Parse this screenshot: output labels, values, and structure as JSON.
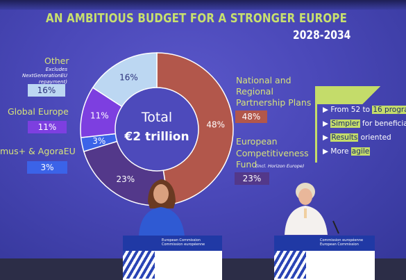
{
  "slide": {
    "title": "AN AMBITIOUS BUDGET FOR A STRONGER EUROPE",
    "years": "2028-2034",
    "total_label": "Total",
    "total_value": "€2 trillion"
  },
  "left_labels": [
    {
      "label": "Other",
      "note": "Excludes NextGenerationEU repayment)",
      "value": "16%",
      "color": "#bcd7f2"
    },
    {
      "label": "Global Europe",
      "value": "11%",
      "color": "#7d3fe0"
    },
    {
      "label": "mus+ & AgoraEU",
      "value": "3%",
      "color": "#3b63e8"
    }
  ],
  "right_labels": [
    {
      "label_lines": [
        "National and",
        "Regional",
        "Partnership Plans"
      ],
      "value": "48%",
      "color": "#b2574b"
    },
    {
      "label_lines": [
        "European",
        "Competitiveness",
        "Fund"
      ],
      "note": "(incl. Horizon Europe)",
      "value": "23%",
      "color": "#53388a"
    }
  ],
  "donut": {
    "segments": [
      {
        "name": "National and Regional Partnership Plans",
        "value": 48,
        "label": "48%",
        "color": "#b2574b"
      },
      {
        "name": "European Competitiveness Fund",
        "value": 23,
        "label": "23%",
        "color": "#53388a"
      },
      {
        "name": "mus+ & AgoraEU",
        "value": 3,
        "label": "3%",
        "color": "#3b63e8"
      },
      {
        "name": "Global Europe",
        "value": 11,
        "label": "11%",
        "color": "#7d3fe0"
      },
      {
        "name": "Other",
        "value": 16,
        "label": "16%",
        "color": "#bcd7f2"
      }
    ]
  },
  "bullets": [
    {
      "prefix": "From 52 to ",
      "highlight": "16 progra",
      "suffix": ""
    },
    {
      "prefix": "",
      "highlight": "Simpler",
      "suffix": " for beneficiari"
    },
    {
      "prefix": "",
      "highlight": "Results",
      "suffix": " oriented"
    },
    {
      "prefix": "More ",
      "highlight": "agile",
      "suffix": ""
    }
  ],
  "podiums": [
    {
      "line1": "European Commission",
      "line2": "Commission européenne"
    },
    {
      "line1": "Commission européenne",
      "line2": "European Commission"
    }
  ],
  "colors": {
    "title": "#c8e06e",
    "accent": "#c4dc6a",
    "podium_blue": "#2039a5"
  }
}
